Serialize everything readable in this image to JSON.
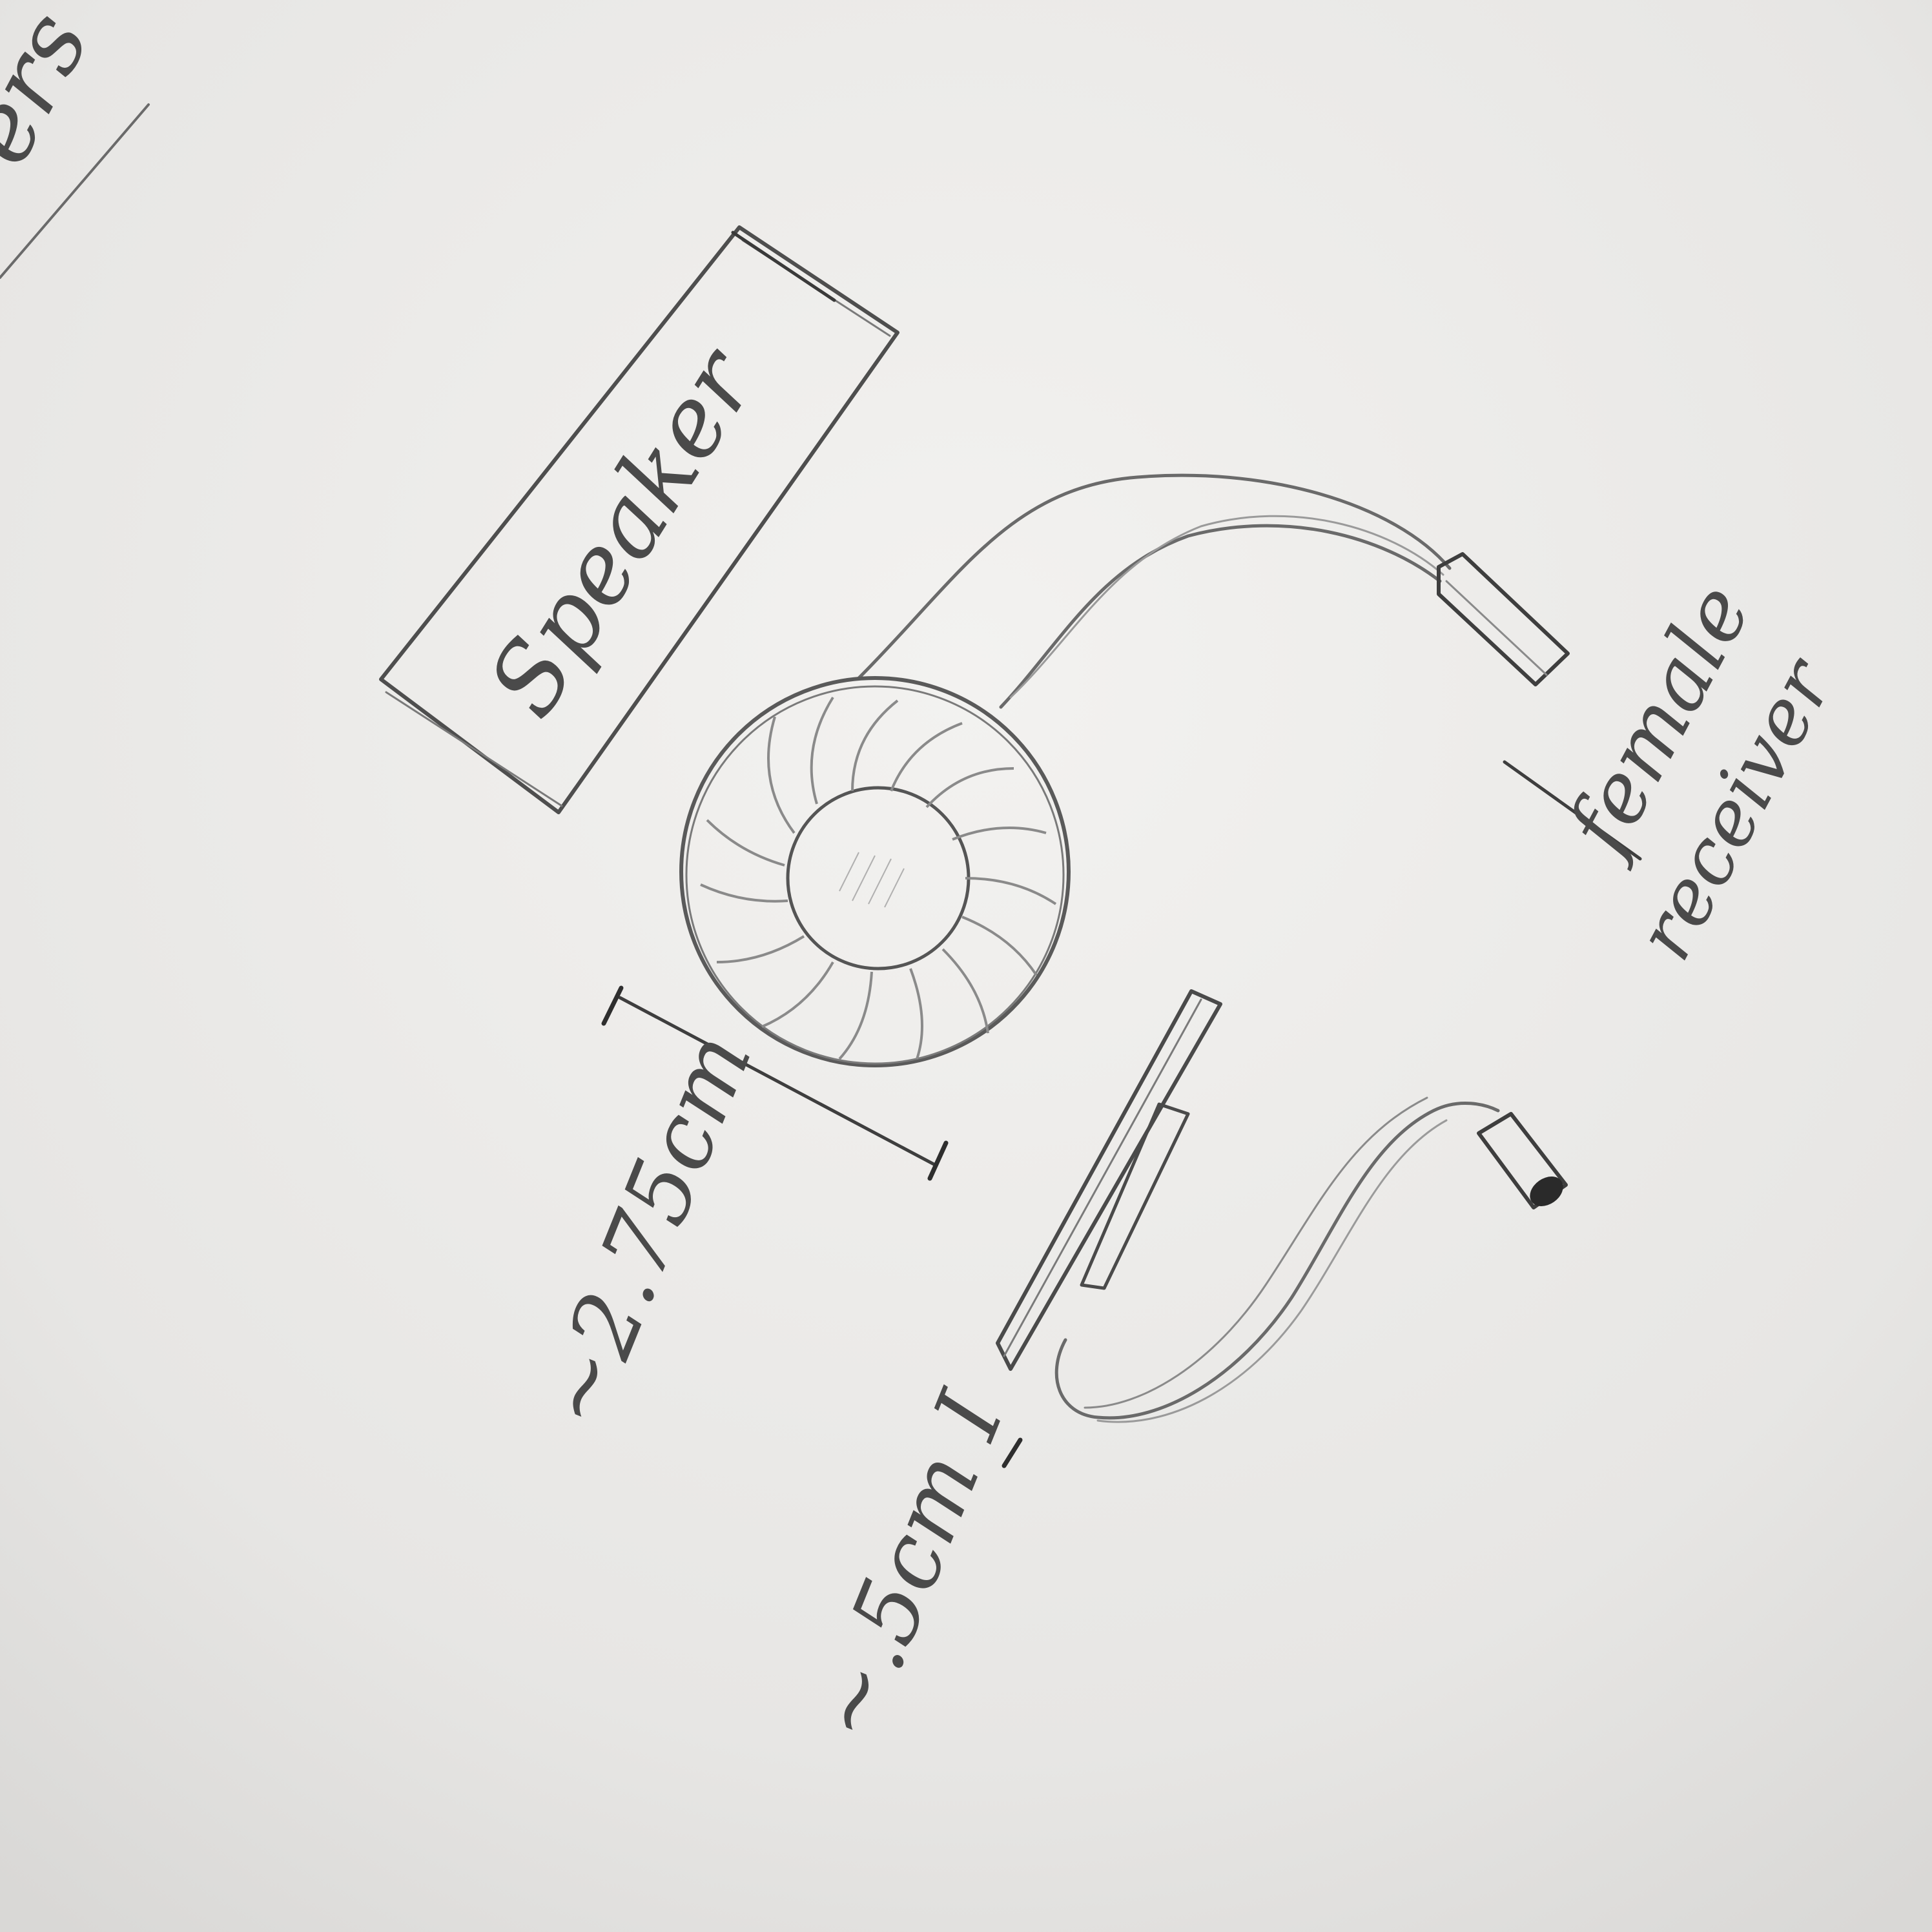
{
  "sketch": {
    "corner_fragment": "ers",
    "speaker_label": "Speaker",
    "receiver_label_line1": "female",
    "receiver_label_line2": "receiver",
    "driver_dimension": "~2.75cm",
    "jack_dimension": "~.5cm I"
  },
  "colors": {
    "paper": "#ecebe9",
    "graphite": "#5a5a5a",
    "graphite_light": "#8a8a8a",
    "graphite_dark": "#2e2e2e"
  },
  "icons": {
    "speaker_driver": "speaker-driver-icon",
    "audio_jack": "audio-jack-icon",
    "female_receiver": "female-receiver-icon"
  }
}
